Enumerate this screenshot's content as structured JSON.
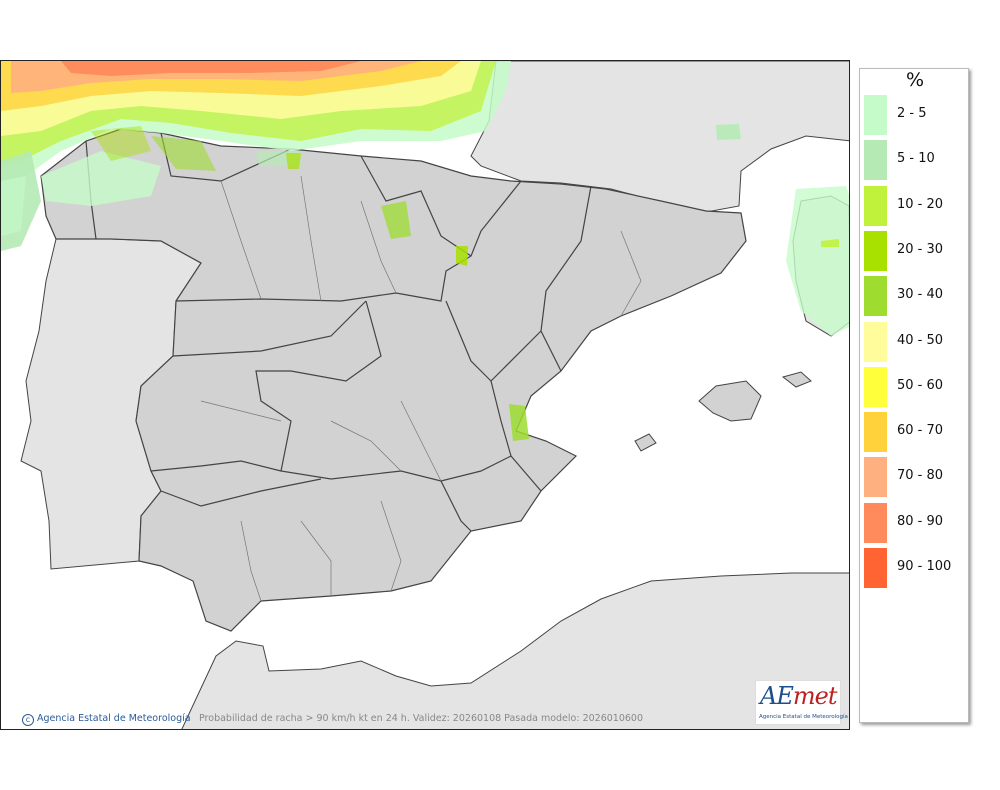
{
  "legend": {
    "title": "%",
    "items": [
      {
        "label": "2 - 5",
        "color": "#c5fbc9"
      },
      {
        "label": "5 - 10",
        "color": "#b5eab4"
      },
      {
        "label": "10 - 20",
        "color": "#c0f23c"
      },
      {
        "label": "20 - 30",
        "color": "#a8e000"
      },
      {
        "label": "30 - 40",
        "color": "#9edc30"
      },
      {
        "label": "40 - 50",
        "color": "#fffc9c"
      },
      {
        "label": "50 - 60",
        "color": "#ffff3c"
      },
      {
        "label": "60 - 70",
        "color": "#ffd23c"
      },
      {
        "label": "70 - 80",
        "color": "#ffb080"
      },
      {
        "label": "80 - 90",
        "color": "#ff8a5c"
      },
      {
        "label": "90 - 100",
        "color": "#ff6432"
      }
    ]
  },
  "credit": "Agencia Estatal de Meteorología",
  "caption": "Probabilidad de racha > 90 km/h kt en 24 h. Validez: 20260108 Pasada modelo: 2026010600",
  "logo": {
    "word_a": "AE",
    "word_b": "met",
    "subtitle": "Agencia Estatal de Meteorología"
  },
  "colors": {
    "sea": "#ffffff",
    "land_other": "#e4e4e4",
    "land_spain": "#d2d2d2",
    "border": "#444444"
  }
}
